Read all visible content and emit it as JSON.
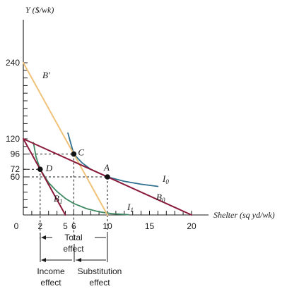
{
  "chart_data": {
    "type": "line",
    "xlabel": "Shelter (sq yd/wk)",
    "ylabel": "Y ($/wk)",
    "xlim": [
      0,
      20
    ],
    "ylim": [
      0,
      250
    ],
    "x_ticks": [
      0,
      2,
      5,
      6,
      10,
      15,
      20
    ],
    "y_ticks": [
      60,
      72,
      96,
      120,
      240
    ],
    "x_minor_ticks": [
      1,
      3,
      4,
      7,
      8,
      9,
      11,
      12,
      13,
      14,
      16,
      17,
      18,
      19
    ],
    "y_minor_ticks": [
      12,
      24,
      36,
      48,
      108,
      132,
      144,
      156,
      168,
      180,
      192,
      204,
      216,
      228
    ],
    "series": [
      {
        "name": "B0",
        "kind": "budget",
        "color": "#8b1a3a",
        "points": [
          [
            0,
            120
          ],
          [
            20,
            0
          ]
        ]
      },
      {
        "name": "B1",
        "kind": "budget",
        "color": "#8b1a3a",
        "points": [
          [
            0,
            120
          ],
          [
            5,
            0
          ]
        ]
      },
      {
        "name": "B'",
        "kind": "budget",
        "color": "#f0c27a",
        "points": [
          [
            0,
            240
          ],
          [
            10,
            0
          ]
        ]
      },
      {
        "name": "I0",
        "kind": "indifference",
        "color": "#2f6f8f",
        "points": [
          [
            5.3,
            129
          ],
          [
            6,
            96
          ],
          [
            7,
            82
          ],
          [
            8,
            72
          ],
          [
            10,
            60
          ],
          [
            12,
            53
          ],
          [
            14,
            48.5
          ],
          [
            16,
            45
          ]
        ]
      },
      {
        "name": "I1",
        "kind": "indifference",
        "color": "#3f8a63",
        "points": [
          [
            1.2,
            114
          ],
          [
            1.5,
            92
          ],
          [
            2,
            72
          ],
          [
            3,
            51
          ],
          [
            4,
            37
          ],
          [
            5,
            26
          ],
          [
            6,
            18
          ],
          [
            7.5,
            10
          ],
          [
            9,
            5
          ],
          [
            10.5,
            2
          ],
          [
            12.5,
            0.5
          ]
        ]
      }
    ],
    "points": [
      {
        "label": "A",
        "x": 10,
        "y": 60
      },
      {
        "label": "C",
        "x": 6,
        "y": 96
      },
      {
        "label": "D",
        "x": 2,
        "y": 72
      }
    ],
    "labels": {
      "B0": {
        "main": "B",
        "sub": "0"
      },
      "B1": {
        "main": "B",
        "sub": "1"
      },
      "Bprime": {
        "main": "B'"
      },
      "I0": {
        "main": "I",
        "sub": "0"
      },
      "I1": {
        "main": "I",
        "sub": "1"
      }
    },
    "annotations": {
      "total_effect": [
        "Total",
        "effect"
      ],
      "income_effect": [
        "Income",
        "effect"
      ],
      "substitution_effect": [
        "Substitution",
        "effect"
      ]
    }
  }
}
